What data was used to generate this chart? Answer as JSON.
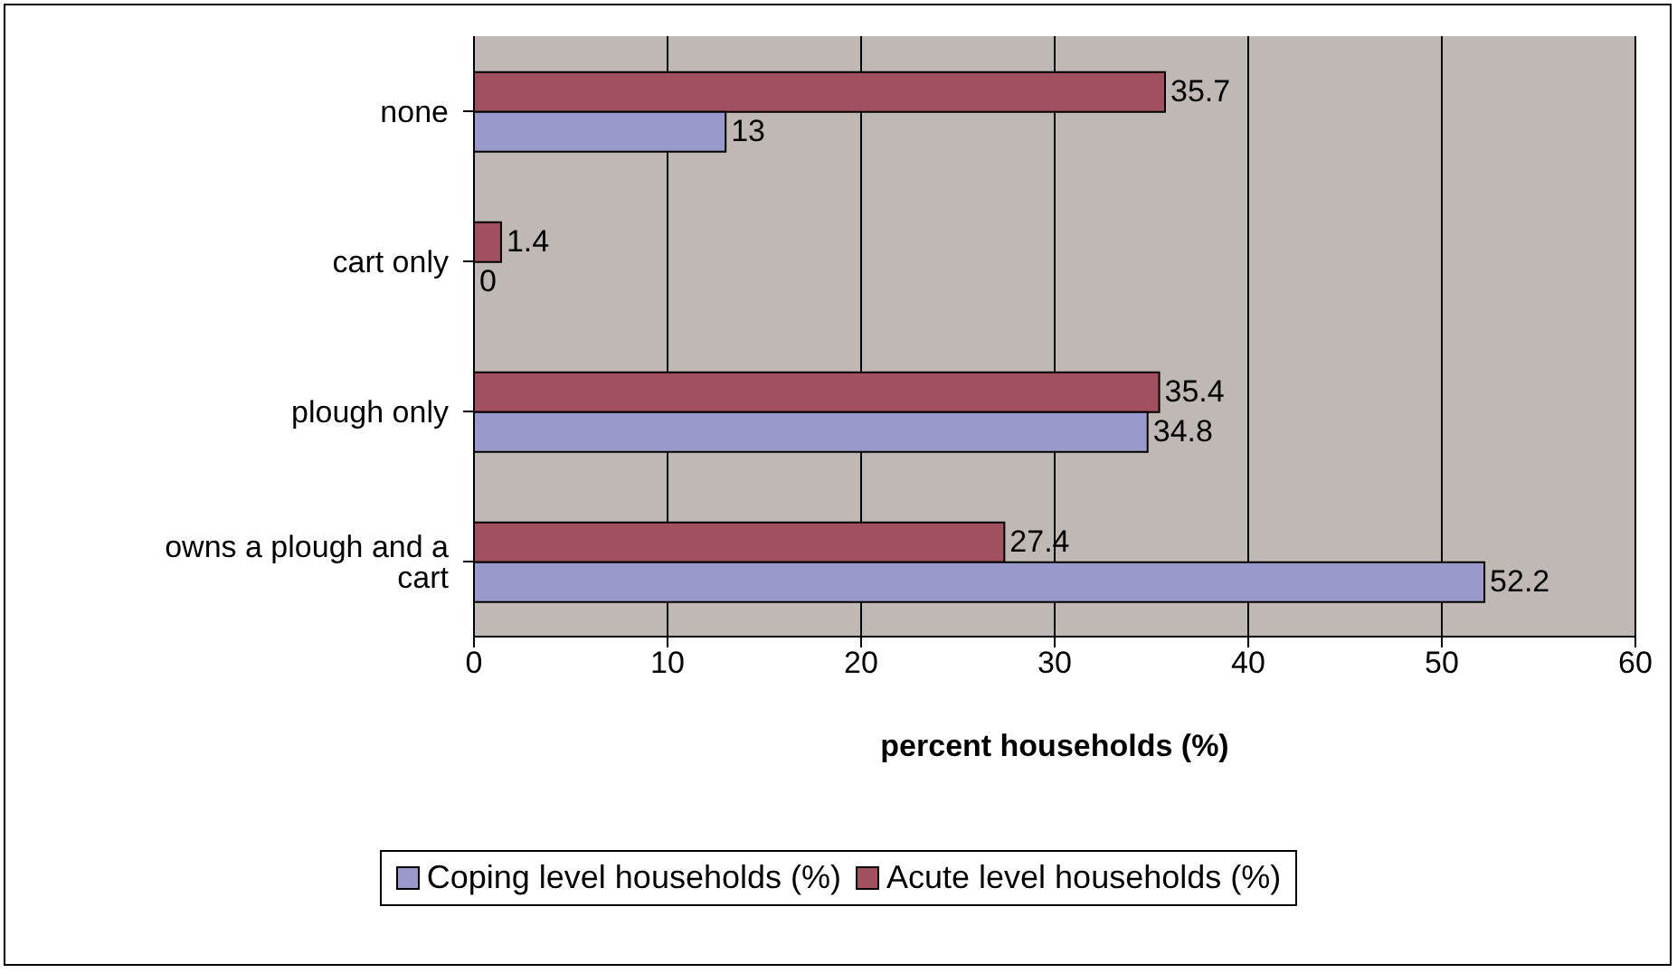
{
  "chart_data": {
    "type": "bar",
    "orientation": "horizontal",
    "xlabel": "percent households (%)",
    "categories": [
      "none",
      "cart only",
      "plough only",
      "owns a plough and a cart"
    ],
    "series": [
      {
        "name": "Coping level households (%)",
        "color": "#9999cc",
        "values": [
          13,
          0,
          34.8,
          52.2
        ]
      },
      {
        "name": "Acute level households (%)",
        "color": "#a0505e",
        "values": [
          35.7,
          1.4,
          35.4,
          27.4
        ]
      }
    ],
    "xlim": [
      0,
      60
    ],
    "xticks": [
      0,
      10,
      20,
      30,
      40,
      50,
      60
    ],
    "grid": "x",
    "legend": "bottom",
    "data_labels": true
  }
}
